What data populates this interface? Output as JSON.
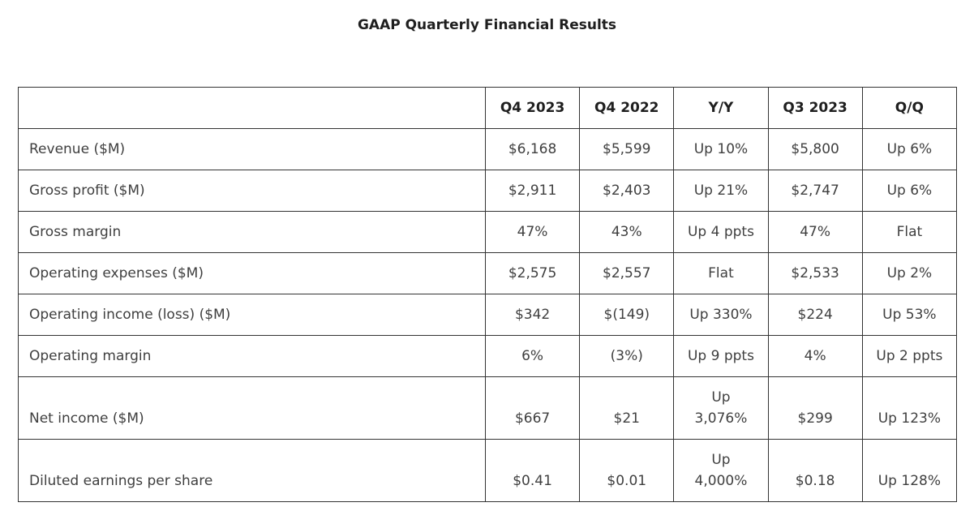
{
  "chart_data": {
    "type": "table",
    "title": "GAAP Quarterly Financial Results",
    "columns": [
      "",
      "Q4 2023",
      "Q4 2022",
      "Y/Y",
      "Q3 2023",
      "Q/Q"
    ],
    "rows": [
      {
        "label": "Revenue ($M)",
        "values": [
          "$6,168",
          "$5,599",
          "Up 10%",
          "$5,800",
          "Up 6%"
        ]
      },
      {
        "label": "Gross profit ($M)",
        "values": [
          "$2,911",
          "$2,403",
          "Up 21%",
          "$2,747",
          "Up 6%"
        ]
      },
      {
        "label": "Gross margin",
        "values": [
          "47%",
          "43%",
          "Up 4 ppts",
          "47%",
          "Flat"
        ]
      },
      {
        "label": "Operating expenses ($M)",
        "values": [
          "$2,575",
          "$2,557",
          "Flat",
          "$2,533",
          "Up 2%"
        ]
      },
      {
        "label": "Operating income (loss) ($M)",
        "values": [
          "$342",
          "$(149)",
          "Up 330%",
          "$224",
          "Up 53%"
        ]
      },
      {
        "label": "Operating margin",
        "values": [
          "6%",
          "(3%)",
          "Up 9 ppts",
          "4%",
          "Up 2 ppts"
        ]
      },
      {
        "label": "Net income ($M)",
        "values": [
          "$667",
          "$21",
          "Up\n3,076%",
          "$299",
          "Up 123%"
        ]
      },
      {
        "label": "Diluted earnings per share",
        "values": [
          "$0.41",
          "$0.01",
          "Up\n4,000%",
          "$0.18",
          "Up 128%"
        ]
      }
    ],
    "layout": {
      "grid": true,
      "legend": "none"
    }
  },
  "colors": {
    "background": "#ffffff",
    "border": "#333333",
    "body_text": "#3f3f3f",
    "heading_text": "#1f1f1f"
  }
}
